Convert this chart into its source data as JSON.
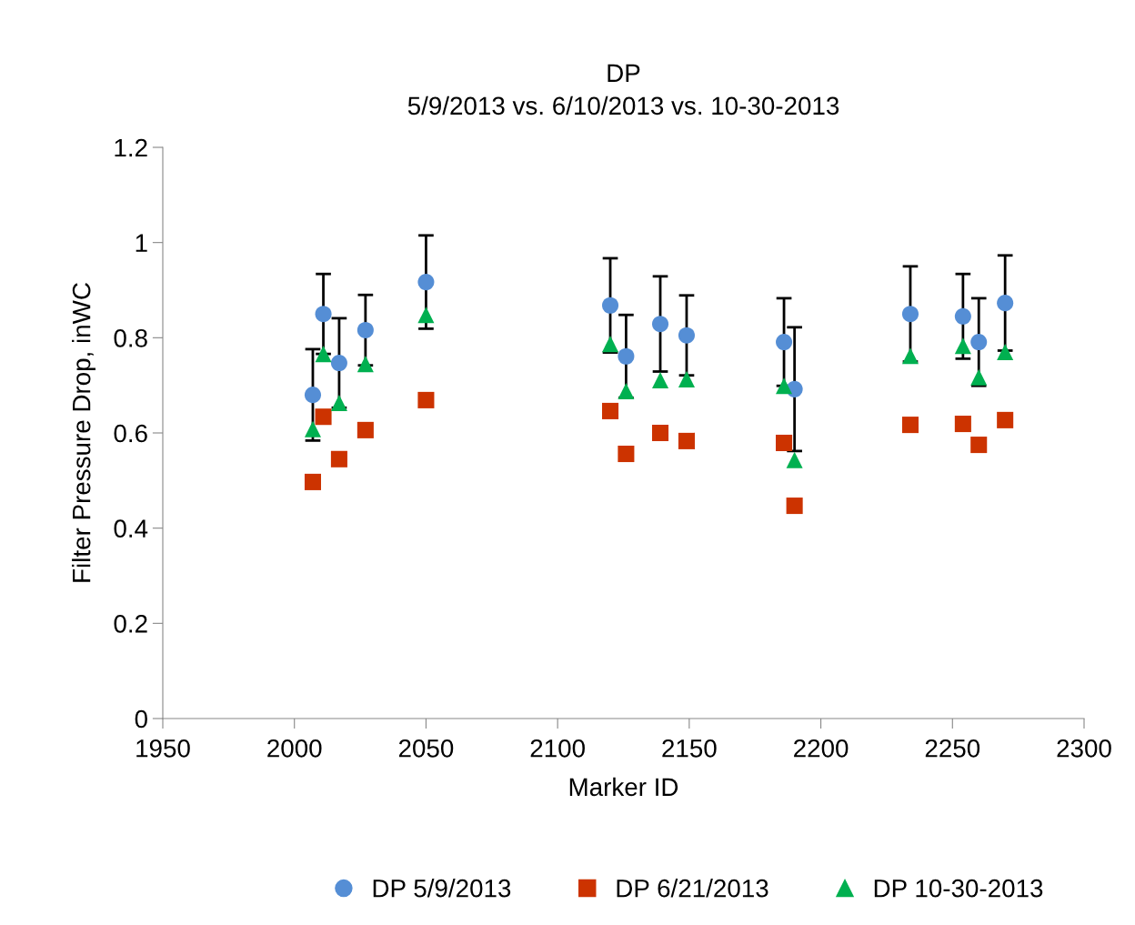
{
  "chart_data": {
    "type": "scatter",
    "title": "DP\n5/9/2013 vs. 6/10/2013 vs. 10-30-2013",
    "xlabel": "Marker ID",
    "ylabel": "Filter Pressure Drop, inWC",
    "x": [
      2007,
      2011,
      2017,
      2027,
      2050,
      2120,
      2126,
      2139,
      2149,
      2186,
      2190,
      2234,
      2254,
      2260,
      2270
    ],
    "series": [
      {
        "name": "DP 5/9/2013",
        "color": "#558ed5",
        "marker": "circle",
        "values": [
          0.68,
          0.85,
          0.747,
          0.816,
          0.917,
          0.868,
          0.761,
          0.829,
          0.805,
          0.791,
          0.692,
          0.85,
          0.845,
          0.791,
          0.873
        ],
        "errors": [
          0.096,
          0.084,
          0.094,
          0.074,
          0.098,
          0.099,
          0.087,
          0.1,
          0.084,
          0.092,
          0.13,
          0.1,
          0.089,
          0.092,
          0.1
        ]
      },
      {
        "name": "DP 6/21/2013",
        "color": "#cc3300",
        "marker": "square",
        "values": [
          0.497,
          0.634,
          0.545,
          0.606,
          0.669,
          0.646,
          0.556,
          0.6,
          0.583,
          0.579,
          0.447,
          0.617,
          0.619,
          0.575,
          0.627
        ]
      },
      {
        "name": "DP 10-30-2013",
        "color": "#00b050",
        "marker": "triangle",
        "values": [
          0.608,
          0.766,
          0.663,
          0.745,
          0.848,
          0.787,
          0.688,
          0.711,
          0.713,
          0.699,
          0.543,
          0.762,
          0.783,
          0.717,
          0.77
        ]
      }
    ],
    "xlim": [
      1950,
      2300
    ],
    "xticks": [
      1950,
      2000,
      2050,
      2100,
      2150,
      2200,
      2250,
      2300
    ],
    "ylim": [
      0,
      1.2
    ],
    "yticks": [
      0,
      0.2,
      0.4,
      0.6,
      0.8,
      1,
      1.2
    ],
    "grid": false,
    "legend": "bottom"
  }
}
